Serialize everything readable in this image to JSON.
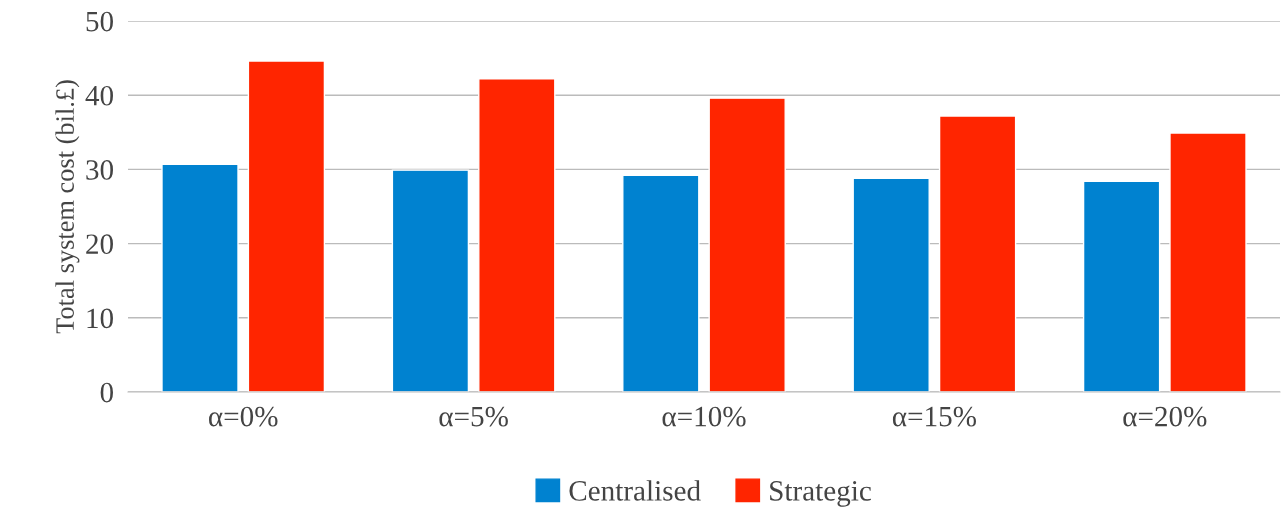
{
  "chart_data": {
    "type": "bar",
    "ylabel": "Total system cost (bil.£)",
    "categories": [
      "α=0%",
      "α=5%",
      "α=10%",
      "α=15%",
      "α=20%"
    ],
    "series": [
      {
        "name": "Centralised",
        "color": "#0082d0",
        "values": [
          30.7,
          29.9,
          29.2,
          28.8,
          28.4
        ]
      },
      {
        "name": "Strategic",
        "color": "#ff2500",
        "values": [
          44.6,
          42.2,
          39.6,
          37.2,
          34.9
        ]
      }
    ],
    "ylim": [
      0,
      50
    ],
    "yticks": [
      0,
      10,
      20,
      30,
      40,
      50
    ],
    "grid": "y",
    "legend": "bottom"
  }
}
